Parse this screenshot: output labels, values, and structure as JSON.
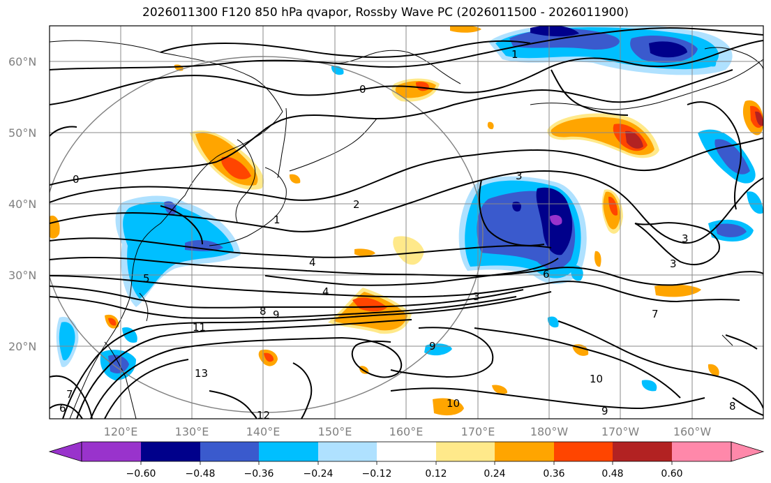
{
  "title": "2026011300 F120 850 hPa qvapor, Rossby Wave PC (2026011500 - 2026011900)",
  "lat_labels": [
    "60°N",
    "50°N",
    "40°N",
    "30°N",
    "20°N"
  ],
  "lon_labels": [
    "120°E",
    "130°E",
    "140°E",
    "150°E",
    "160°E",
    "170°E",
    "180°W",
    "170°W",
    "160°W"
  ],
  "contour_labels": [
    "1",
    "0",
    "0",
    "2",
    "3",
    "4",
    "4",
    "3",
    "3",
    "3",
    "7",
    "5",
    "8",
    "9",
    "9",
    "10",
    "11",
    "13",
    "10",
    "9",
    "12",
    "6",
    "7",
    "8",
    "1",
    "6"
  ],
  "colorbar": {
    "tick_labels": [
      "−0.60",
      "−0.48",
      "−0.36",
      "−0.24",
      "−0.12",
      "0.12",
      "0.24",
      "0.36",
      "0.48",
      "0.60"
    ],
    "colors": [
      "#9933cc",
      "#00008b",
      "#3a5acd",
      "#00bfff",
      "#afe1ff",
      "#ffffff",
      "#ffe98a",
      "#ffa500",
      "#ff4500",
      "#b22222",
      "#ff88aa"
    ]
  },
  "fill_colors": {
    "neg_light": "#afe1ff",
    "neg_mid": "#00bfff",
    "neg_strong": "#3a5acd",
    "neg_max": "#00008b",
    "neg_ext": "#9933cc",
    "pos_light": "#ffe98a",
    "pos_mid": "#ffa500",
    "pos_strong": "#ff4500",
    "pos_max": "#b22222"
  }
}
